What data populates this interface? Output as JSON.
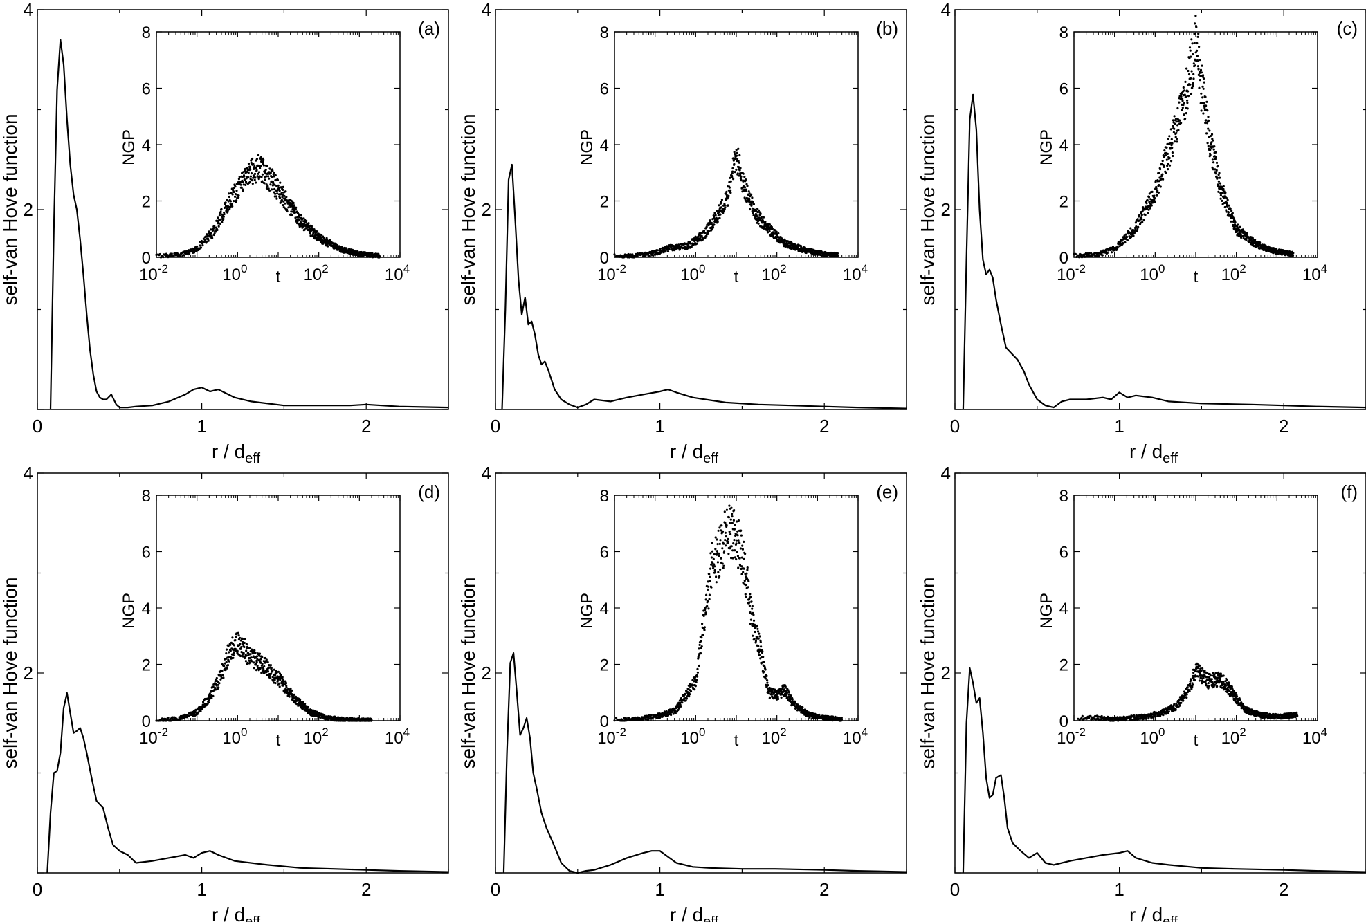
{
  "chart_data": [
    {
      "type": "line",
      "panel": "(a)",
      "ylabel": "self-van Hove function",
      "xlabel": "r / d",
      "xlabel_sub": "eff",
      "xlim": [
        0,
        2.5
      ],
      "ylim": [
        0,
        4
      ],
      "xticks": [
        0,
        1,
        2
      ],
      "yticks": [
        2,
        4
      ],
      "x": [
        0.08,
        0.1,
        0.12,
        0.14,
        0.16,
        0.18,
        0.2,
        0.22,
        0.24,
        0.26,
        0.28,
        0.3,
        0.32,
        0.34,
        0.36,
        0.38,
        0.4,
        0.42,
        0.45,
        0.48,
        0.5,
        0.55,
        0.6,
        0.7,
        0.8,
        0.9,
        0.95,
        1.0,
        1.05,
        1.1,
        1.2,
        1.3,
        1.5,
        1.7,
        1.9,
        2.0,
        2.2,
        2.5
      ],
      "values": [
        0.0,
        1.8,
        3.2,
        3.7,
        3.45,
        2.9,
        2.45,
        2.15,
        2.0,
        1.7,
        1.35,
        0.95,
        0.6,
        0.35,
        0.18,
        0.12,
        0.1,
        0.1,
        0.15,
        0.05,
        0.02,
        0.02,
        0.03,
        0.04,
        0.08,
        0.15,
        0.2,
        0.22,
        0.18,
        0.2,
        0.12,
        0.08,
        0.04,
        0.04,
        0.04,
        0.05,
        0.03,
        0.02
      ],
      "inset": {
        "type": "scatter",
        "xscale": "log",
        "xlabel": "t",
        "ylabel": "NGP",
        "xlim_exp": [
          -2,
          4
        ],
        "ylim": [
          0,
          8
        ],
        "xtick_exps": [
          "-2",
          "0",
          "2",
          "4"
        ],
        "yticks": [
          0,
          2,
          4,
          6,
          8
        ],
        "log_t": [
          -2.0,
          -1.4,
          -1.0,
          -0.6,
          -0.2,
          0.2,
          0.5,
          0.8,
          1.0,
          1.3,
          1.6,
          2.0,
          2.5,
          3.0,
          3.5
        ],
        "values": [
          0.05,
          0.1,
          0.3,
          0.9,
          2.0,
          2.9,
          3.2,
          2.8,
          2.4,
          1.8,
          1.2,
          0.7,
          0.3,
          0.12,
          0.05
        ]
      }
    },
    {
      "type": "line",
      "panel": "(b)",
      "ylabel": "self-van Hove function",
      "xlabel": "r / d",
      "xlabel_sub": "eff",
      "xlim": [
        0,
        2.5
      ],
      "ylim": [
        0,
        4
      ],
      "xticks": [
        0,
        1,
        2
      ],
      "yticks": [
        2,
        4
      ],
      "x": [
        0.04,
        0.06,
        0.08,
        0.1,
        0.12,
        0.14,
        0.16,
        0.18,
        0.2,
        0.22,
        0.24,
        0.26,
        0.28,
        0.3,
        0.32,
        0.34,
        0.36,
        0.4,
        0.45,
        0.5,
        0.55,
        0.6,
        0.7,
        0.8,
        0.9,
        1.0,
        1.05,
        1.1,
        1.2,
        1.4,
        1.6,
        1.8,
        2.0,
        2.2,
        2.5
      ],
      "values": [
        0.0,
        1.0,
        2.3,
        2.45,
        1.9,
        1.3,
        0.95,
        1.12,
        0.85,
        0.88,
        0.75,
        0.55,
        0.45,
        0.48,
        0.4,
        0.3,
        0.2,
        0.1,
        0.05,
        0.02,
        0.05,
        0.1,
        0.08,
        0.12,
        0.15,
        0.18,
        0.2,
        0.17,
        0.12,
        0.07,
        0.05,
        0.04,
        0.03,
        0.02,
        0.01
      ],
      "inset": {
        "type": "scatter",
        "xscale": "log",
        "xlabel": "t",
        "ylabel": "NGP",
        "xlim_exp": [
          -2,
          4
        ],
        "ylim": [
          0,
          8
        ],
        "xtick_exps": [
          "-2",
          "0",
          "2",
          "4"
        ],
        "yticks": [
          0,
          2,
          4,
          6,
          8
        ],
        "log_t": [
          -2.0,
          -1.5,
          -1.0,
          -0.6,
          -0.2,
          0.2,
          0.5,
          0.8,
          1.0,
          1.2,
          1.5,
          1.8,
          2.2,
          2.6,
          3.0,
          3.5
        ],
        "values": [
          0.05,
          0.05,
          0.15,
          0.35,
          0.4,
          0.8,
          1.4,
          2.2,
          3.6,
          2.5,
          1.5,
          1.0,
          0.5,
          0.3,
          0.15,
          0.08
        ]
      }
    },
    {
      "type": "line",
      "panel": "(c)",
      "ylabel": "self-van Hove function",
      "xlabel": "r / d",
      "xlabel_sub": "eff",
      "xlim": [
        0,
        2.5
      ],
      "ylim": [
        0,
        4
      ],
      "xticks": [
        0,
        1,
        2
      ],
      "yticks": [
        2,
        4
      ],
      "x": [
        0.05,
        0.07,
        0.09,
        0.11,
        0.13,
        0.15,
        0.17,
        0.19,
        0.21,
        0.23,
        0.25,
        0.28,
        0.31,
        0.35,
        0.38,
        0.42,
        0.45,
        0.5,
        0.55,
        0.6,
        0.65,
        0.7,
        0.8,
        0.9,
        0.95,
        1.0,
        1.05,
        1.1,
        1.2,
        1.3,
        1.5,
        1.8,
        2.0,
        2.2,
        2.5
      ],
      "values": [
        0.0,
        1.5,
        2.9,
        3.15,
        2.8,
        2.0,
        1.5,
        1.35,
        1.4,
        1.32,
        1.1,
        0.85,
        0.62,
        0.55,
        0.5,
        0.38,
        0.25,
        0.1,
        0.04,
        0.02,
        0.08,
        0.1,
        0.1,
        0.12,
        0.1,
        0.17,
        0.12,
        0.14,
        0.12,
        0.08,
        0.06,
        0.05,
        0.04,
        0.03,
        0.02
      ],
      "inset": {
        "type": "scatter",
        "xscale": "log",
        "xlabel": "t",
        "ylabel": "NGP",
        "xlim_exp": [
          -2,
          4
        ],
        "ylim": [
          0,
          8
        ],
        "xtick_exps": [
          "-2",
          "0",
          "2",
          "4"
        ],
        "yticks": [
          0,
          2,
          4,
          6,
          8
        ],
        "log_t": [
          -2.0,
          -1.4,
          -1.0,
          -0.5,
          0.0,
          0.4,
          0.7,
          0.9,
          1.0,
          1.1,
          1.3,
          1.6,
          2.0,
          2.5,
          3.0,
          3.4
        ],
        "values": [
          0.05,
          0.1,
          0.3,
          1.0,
          2.3,
          4.0,
          5.5,
          6.8,
          7.8,
          6.5,
          4.5,
          2.5,
          1.0,
          0.45,
          0.2,
          0.12
        ]
      }
    },
    {
      "type": "line",
      "panel": "(d)",
      "ylabel": "self-van Hove function",
      "xlabel": "r / d",
      "xlabel_sub": "eff",
      "xlim": [
        0,
        2.5
      ],
      "ylim": [
        0,
        4
      ],
      "xticks": [
        0,
        1,
        2
      ],
      "yticks": [
        2,
        4
      ],
      "x": [
        0.06,
        0.08,
        0.1,
        0.12,
        0.14,
        0.16,
        0.18,
        0.2,
        0.22,
        0.24,
        0.26,
        0.28,
        0.3,
        0.33,
        0.36,
        0.4,
        0.43,
        0.46,
        0.5,
        0.55,
        0.6,
        0.7,
        0.8,
        0.9,
        0.95,
        1.0,
        1.05,
        1.1,
        1.2,
        1.4,
        1.6,
        1.8,
        2.0,
        2.2,
        2.5
      ],
      "values": [
        0.0,
        0.6,
        1.0,
        1.02,
        1.2,
        1.65,
        1.8,
        1.6,
        1.4,
        1.42,
        1.45,
        1.35,
        1.2,
        0.95,
        0.72,
        0.65,
        0.45,
        0.28,
        0.22,
        0.18,
        0.1,
        0.12,
        0.15,
        0.18,
        0.15,
        0.2,
        0.22,
        0.18,
        0.12,
        0.08,
        0.05,
        0.04,
        0.03,
        0.02,
        0.01
      ],
      "inset": {
        "type": "scatter",
        "xscale": "log",
        "xlabel": "t",
        "ylabel": "NGP",
        "xlim_exp": [
          -2,
          4
        ],
        "ylim": [
          0,
          8
        ],
        "xtick_exps": [
          "-2",
          "0",
          "2",
          "4"
        ],
        "yticks": [
          0,
          2,
          4,
          6,
          8
        ],
        "log_t": [
          -2.0,
          -1.4,
          -1.0,
          -0.7,
          -0.4,
          -0.2,
          0.0,
          0.3,
          0.6,
          1.0,
          1.4,
          1.8,
          2.2,
          2.6,
          3.0,
          3.3
        ],
        "values": [
          0.0,
          0.1,
          0.3,
          0.8,
          1.6,
          2.5,
          2.8,
          2.3,
          2.0,
          1.5,
          0.8,
          0.3,
          0.1,
          0.05,
          0.02,
          0.02
        ]
      }
    },
    {
      "type": "line",
      "panel": "(e)",
      "ylabel": "self-van Hove function",
      "xlabel": "r / d",
      "xlabel_sub": "eff",
      "xlim": [
        0,
        2.5
      ],
      "ylim": [
        0,
        4
      ],
      "xticks": [
        0,
        1,
        2
      ],
      "yticks": [
        2,
        4
      ],
      "x": [
        0.05,
        0.07,
        0.09,
        0.11,
        0.13,
        0.15,
        0.17,
        0.19,
        0.21,
        0.23,
        0.25,
        0.28,
        0.31,
        0.35,
        0.4,
        0.45,
        0.5,
        0.55,
        0.6,
        0.7,
        0.8,
        0.9,
        0.95,
        1.0,
        1.05,
        1.1,
        1.2,
        1.3,
        1.5,
        1.7,
        2.0,
        2.2,
        2.5
      ],
      "values": [
        0.0,
        1.2,
        2.1,
        2.2,
        1.8,
        1.38,
        1.45,
        1.55,
        1.35,
        1.0,
        0.85,
        0.6,
        0.45,
        0.3,
        0.1,
        0.02,
        0.0,
        0.02,
        0.03,
        0.08,
        0.15,
        0.2,
        0.22,
        0.22,
        0.16,
        0.1,
        0.06,
        0.05,
        0.04,
        0.04,
        0.03,
        0.02,
        0.01
      ],
      "inset": {
        "type": "scatter",
        "xscale": "log",
        "xlabel": "t",
        "ylabel": "NGP",
        "xlim_exp": [
          -2,
          4
        ],
        "ylim": [
          0,
          8
        ],
        "xtick_exps": [
          "-2",
          "0",
          "2",
          "4"
        ],
        "yticks": [
          0,
          2,
          4,
          6,
          8
        ],
        "log_t": [
          -2.0,
          -1.5,
          -1.0,
          -0.5,
          0.0,
          0.2,
          0.4,
          0.6,
          0.8,
          1.0,
          1.2,
          1.4,
          1.6,
          1.8,
          2.0,
          2.2,
          2.4,
          2.8,
          3.2,
          3.6
        ],
        "values": [
          0.05,
          0.05,
          0.15,
          0.35,
          1.4,
          3.5,
          5.5,
          6.0,
          6.8,
          6.5,
          5.5,
          3.5,
          2.5,
          1.0,
          0.9,
          1.1,
          0.6,
          0.2,
          0.1,
          0.05
        ]
      }
    },
    {
      "type": "line",
      "panel": "(f)",
      "ylabel": "self-van Hove function",
      "xlabel": "r / d",
      "xlabel_sub": "eff",
      "xlim": [
        0,
        2.5
      ],
      "ylim": [
        0,
        4
      ],
      "xticks": [
        0,
        1,
        2
      ],
      "yticks": [
        2,
        4
      ],
      "x": [
        0.05,
        0.07,
        0.09,
        0.11,
        0.13,
        0.15,
        0.17,
        0.19,
        0.21,
        0.23,
        0.25,
        0.28,
        0.3,
        0.32,
        0.35,
        0.4,
        0.45,
        0.5,
        0.55,
        0.6,
        0.7,
        0.8,
        0.9,
        1.0,
        1.05,
        1.1,
        1.2,
        1.3,
        1.5,
        1.7,
        2.0,
        2.2,
        2.5
      ],
      "values": [
        0.0,
        1.5,
        2.05,
        1.9,
        1.7,
        1.75,
        1.4,
        0.95,
        0.75,
        0.78,
        0.95,
        0.98,
        0.75,
        0.45,
        0.3,
        0.22,
        0.15,
        0.2,
        0.1,
        0.08,
        0.12,
        0.15,
        0.18,
        0.2,
        0.22,
        0.15,
        0.1,
        0.08,
        0.05,
        0.04,
        0.03,
        0.02,
        0.01
      ],
      "inset": {
        "type": "scatter",
        "xscale": "log",
        "xlabel": "t",
        "ylabel": "NGP",
        "xlim_exp": [
          -2,
          4
        ],
        "ylim": [
          0,
          8
        ],
        "xtick_exps": [
          "-2",
          "0",
          "2",
          "4"
        ],
        "yticks": [
          0,
          2,
          4,
          6,
          8
        ],
        "log_t": [
          -1.9,
          -1.4,
          -1.0,
          -0.6,
          -0.2,
          0.2,
          0.5,
          0.8,
          1.0,
          1.3,
          1.6,
          1.9,
          2.2,
          2.6,
          3.0,
          3.5
        ],
        "values": [
          0.1,
          0.1,
          0.05,
          0.1,
          0.15,
          0.3,
          0.5,
          1.0,
          1.8,
          1.4,
          1.5,
          1.0,
          0.4,
          0.2,
          0.15,
          0.2
        ]
      }
    }
  ]
}
